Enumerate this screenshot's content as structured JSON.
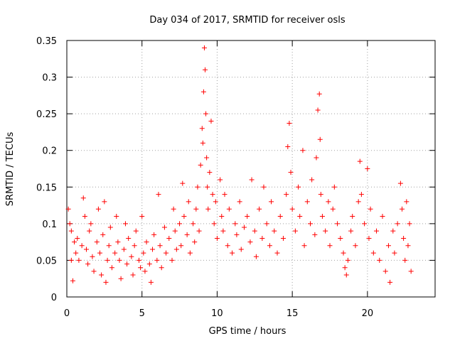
{
  "chart_data": {
    "type": "scatter",
    "title": "Day 034 of 2017, SRMTID for receiver osls",
    "xlabel": "GPS time / hours",
    "ylabel": "SRMTID / TECUs",
    "xlim": [
      0,
      24.5
    ],
    "ylim": [
      0,
      0.35
    ],
    "xticks": [
      0,
      5,
      10,
      15,
      20
    ],
    "xtick_labels": [
      "0",
      "5",
      "10",
      "15",
      "20"
    ],
    "yticks": [
      0,
      0.05,
      0.1,
      0.15,
      0.2,
      0.25,
      0.3,
      0.35
    ],
    "ytick_labels": [
      "0",
      "0.05",
      "0.1",
      "0.15",
      "0.2",
      "0.25",
      "0.3",
      "0.35"
    ],
    "grid": true,
    "marker": "+",
    "color": "#ff0000",
    "series": [
      {
        "name": "SRMTID",
        "points": [
          [
            0.1,
            0.12
          ],
          [
            0.2,
            0.1
          ],
          [
            0.3,
            0.09
          ],
          [
            0.3,
            0.05
          ],
          [
            0.4,
            0.022
          ],
          [
            0.5,
            0.075
          ],
          [
            0.6,
            0.06
          ],
          [
            0.7,
            0.08
          ],
          [
            0.8,
            0.05
          ],
          [
            1.0,
            0.07
          ],
          [
            1.1,
            0.135
          ],
          [
            1.2,
            0.11
          ],
          [
            1.3,
            0.065
          ],
          [
            1.4,
            0.045
          ],
          [
            1.5,
            0.09
          ],
          [
            1.6,
            0.1
          ],
          [
            1.7,
            0.055
          ],
          [
            1.8,
            0.035
          ],
          [
            2.0,
            0.075
          ],
          [
            2.1,
            0.12
          ],
          [
            2.2,
            0.06
          ],
          [
            2.3,
            0.03
          ],
          [
            2.4,
            0.085
          ],
          [
            2.5,
            0.13
          ],
          [
            2.6,
            0.02
          ],
          [
            2.7,
            0.05
          ],
          [
            2.8,
            0.07
          ],
          [
            2.9,
            0.095
          ],
          [
            3.0,
            0.04
          ],
          [
            3.2,
            0.06
          ],
          [
            3.3,
            0.11
          ],
          [
            3.4,
            0.075
          ],
          [
            3.5,
            0.05
          ],
          [
            3.6,
            0.025
          ],
          [
            3.8,
            0.065
          ],
          [
            3.9,
            0.1
          ],
          [
            4.0,
            0.045
          ],
          [
            4.1,
            0.08
          ],
          [
            4.3,
            0.055
          ],
          [
            4.4,
            0.03
          ],
          [
            4.5,
            0.07
          ],
          [
            4.6,
            0.09
          ],
          [
            4.8,
            0.05
          ],
          [
            4.9,
            0.04
          ],
          [
            5.0,
            0.11
          ],
          [
            5.1,
            0.06
          ],
          [
            5.2,
            0.035
          ],
          [
            5.3,
            0.075
          ],
          [
            5.5,
            0.045
          ],
          [
            5.6,
            0.02
          ],
          [
            5.7,
            0.065
          ],
          [
            5.8,
            0.085
          ],
          [
            6.0,
            0.05
          ],
          [
            6.1,
            0.14
          ],
          [
            6.2,
            0.07
          ],
          [
            6.3,
            0.04
          ],
          [
            6.5,
            0.095
          ],
          [
            6.6,
            0.06
          ],
          [
            6.8,
            0.08
          ],
          [
            7.0,
            0.05
          ],
          [
            7.1,
            0.12
          ],
          [
            7.2,
            0.09
          ],
          [
            7.3,
            0.065
          ],
          [
            7.5,
            0.1
          ],
          [
            7.6,
            0.07
          ],
          [
            7.7,
            0.155
          ],
          [
            7.8,
            0.11
          ],
          [
            8.0,
            0.085
          ],
          [
            8.1,
            0.13
          ],
          [
            8.2,
            0.06
          ],
          [
            8.4,
            0.1
          ],
          [
            8.5,
            0.075
          ],
          [
            8.6,
            0.12
          ],
          [
            8.7,
            0.15
          ],
          [
            8.8,
            0.09
          ],
          [
            8.9,
            0.18
          ],
          [
            9.0,
            0.23
          ],
          [
            9.05,
            0.21
          ],
          [
            9.1,
            0.28
          ],
          [
            9.15,
            0.34
          ],
          [
            9.2,
            0.31
          ],
          [
            9.25,
            0.25
          ],
          [
            9.3,
            0.19
          ],
          [
            9.35,
            0.15
          ],
          [
            9.4,
            0.12
          ],
          [
            9.5,
            0.17
          ],
          [
            9.6,
            0.24
          ],
          [
            9.7,
            0.14
          ],
          [
            9.8,
            0.1
          ],
          [
            9.9,
            0.13
          ],
          [
            10.0,
            0.08
          ],
          [
            10.2,
            0.16
          ],
          [
            10.3,
            0.11
          ],
          [
            10.4,
            0.09
          ],
          [
            10.5,
            0.14
          ],
          [
            10.7,
            0.07
          ],
          [
            10.8,
            0.12
          ],
          [
            11.0,
            0.06
          ],
          [
            11.2,
            0.1
          ],
          [
            11.3,
            0.085
          ],
          [
            11.5,
            0.13
          ],
          [
            11.6,
            0.065
          ],
          [
            11.8,
            0.095
          ],
          [
            12.0,
            0.11
          ],
          [
            12.2,
            0.075
          ],
          [
            12.3,
            0.16
          ],
          [
            12.5,
            0.09
          ],
          [
            12.6,
            0.055
          ],
          [
            12.8,
            0.12
          ],
          [
            13.0,
            0.08
          ],
          [
            13.1,
            0.15
          ],
          [
            13.3,
            0.1
          ],
          [
            13.5,
            0.07
          ],
          [
            13.6,
            0.13
          ],
          [
            13.8,
            0.09
          ],
          [
            14.0,
            0.06
          ],
          [
            14.2,
            0.11
          ],
          [
            14.4,
            0.08
          ],
          [
            14.6,
            0.14
          ],
          [
            14.7,
            0.205
          ],
          [
            14.8,
            0.237
          ],
          [
            14.9,
            0.17
          ],
          [
            15.0,
            0.12
          ],
          [
            15.2,
            0.09
          ],
          [
            15.4,
            0.15
          ],
          [
            15.5,
            0.11
          ],
          [
            15.7,
            0.2
          ],
          [
            15.8,
            0.07
          ],
          [
            16.0,
            0.13
          ],
          [
            16.2,
            0.1
          ],
          [
            16.3,
            0.16
          ],
          [
            16.5,
            0.085
          ],
          [
            16.6,
            0.19
          ],
          [
            16.7,
            0.255
          ],
          [
            16.8,
            0.277
          ],
          [
            16.85,
            0.215
          ],
          [
            16.9,
            0.14
          ],
          [
            17.0,
            0.11
          ],
          [
            17.2,
            0.09
          ],
          [
            17.4,
            0.13
          ],
          [
            17.5,
            0.07
          ],
          [
            17.7,
            0.12
          ],
          [
            17.8,
            0.15
          ],
          [
            18.0,
            0.1
          ],
          [
            18.2,
            0.08
          ],
          [
            18.4,
            0.06
          ],
          [
            18.5,
            0.04
          ],
          [
            18.6,
            0.03
          ],
          [
            18.7,
            0.05
          ],
          [
            18.9,
            0.09
          ],
          [
            19.0,
            0.11
          ],
          [
            19.2,
            0.07
          ],
          [
            19.4,
            0.13
          ],
          [
            19.5,
            0.185
          ],
          [
            19.6,
            0.14
          ],
          [
            19.8,
            0.1
          ],
          [
            20.0,
            0.175
          ],
          [
            20.1,
            0.08
          ],
          [
            20.2,
            0.12
          ],
          [
            20.4,
            0.06
          ],
          [
            20.6,
            0.09
          ],
          [
            20.8,
            0.05
          ],
          [
            21.0,
            0.11
          ],
          [
            21.2,
            0.035
          ],
          [
            21.4,
            0.07
          ],
          [
            21.5,
            0.02
          ],
          [
            21.7,
            0.09
          ],
          [
            21.8,
            0.06
          ],
          [
            22.0,
            0.1
          ],
          [
            22.2,
            0.155
          ],
          [
            22.3,
            0.12
          ],
          [
            22.4,
            0.08
          ],
          [
            22.5,
            0.05
          ],
          [
            22.6,
            0.13
          ],
          [
            22.7,
            0.07
          ],
          [
            22.8,
            0.1
          ],
          [
            22.9,
            0.035
          ]
        ]
      }
    ]
  }
}
